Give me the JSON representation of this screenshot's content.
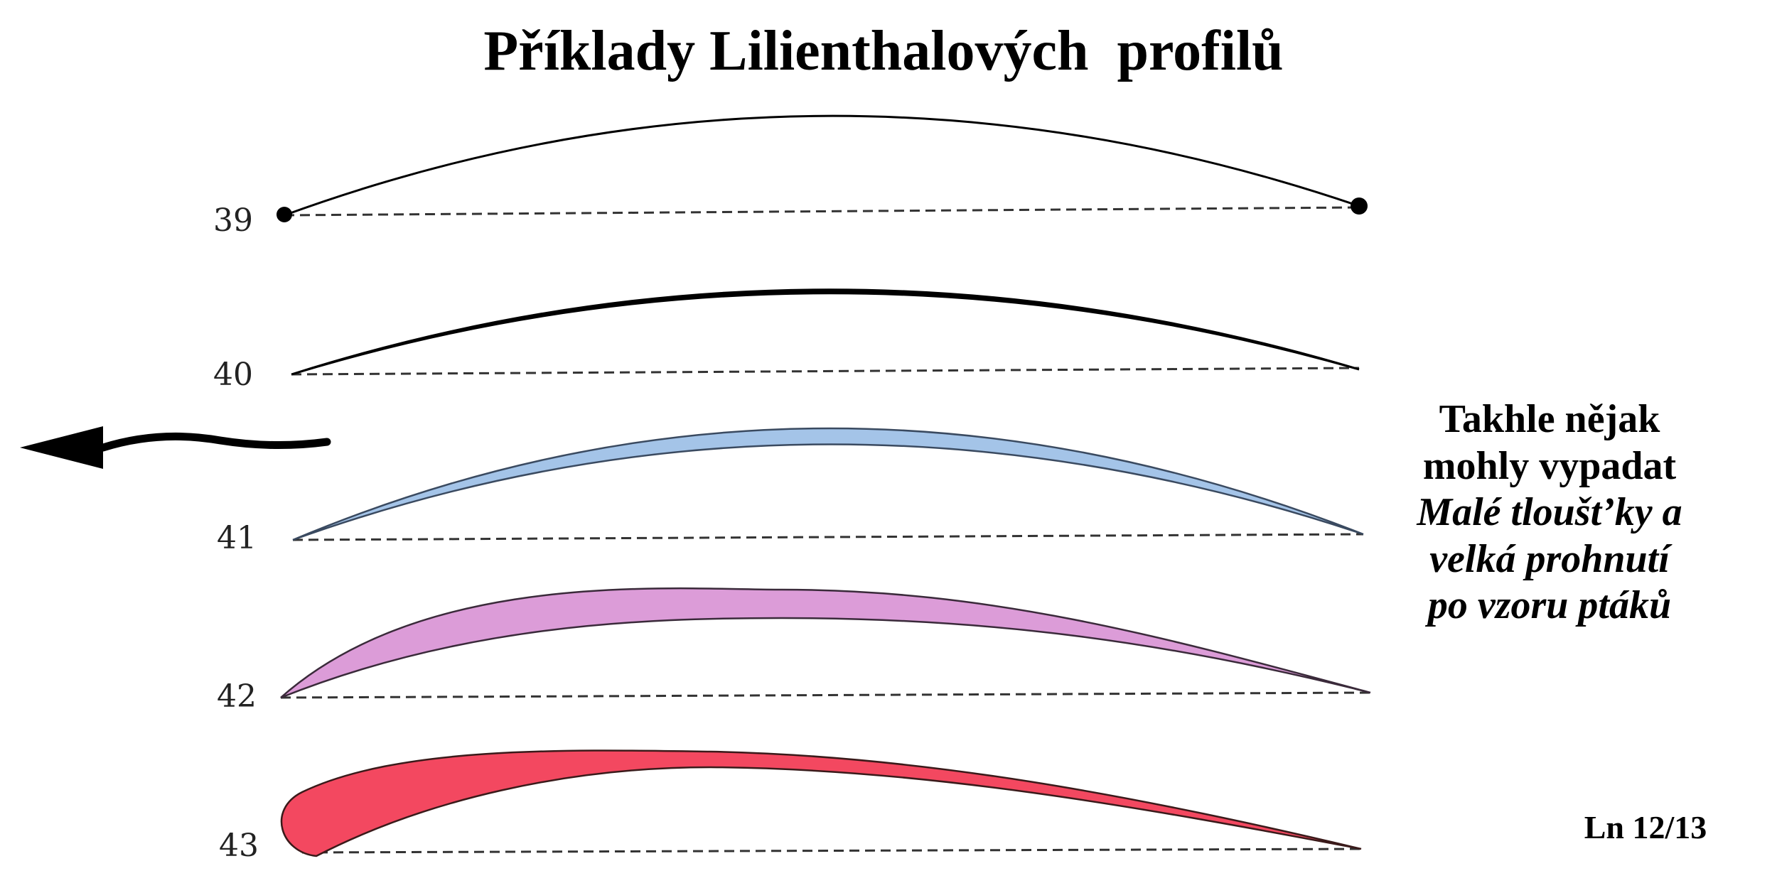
{
  "title": "Příklady Lilienthalových  profilů",
  "note": {
    "lines": [
      "Takhle nějak",
      "mohly vypadat",
      "Malé tloušt’ky a",
      "velká prohnutí",
      "po vzoru ptáků"
    ]
  },
  "page_number": "Ln 12/13",
  "profiles": [
    {
      "label": "39",
      "fill": "#000000"
    },
    {
      "label": "40",
      "fill": "#000000"
    },
    {
      "label": "41",
      "fill": "#a4c4e8"
    },
    {
      "label": "42",
      "fill": "#dc9cd8"
    },
    {
      "label": "43",
      "fill": "#f34860"
    }
  ],
  "colors": {
    "text": "#000000",
    "outline": "#1a1a1a"
  },
  "icons": [
    "wavy-arrow-icon"
  ]
}
